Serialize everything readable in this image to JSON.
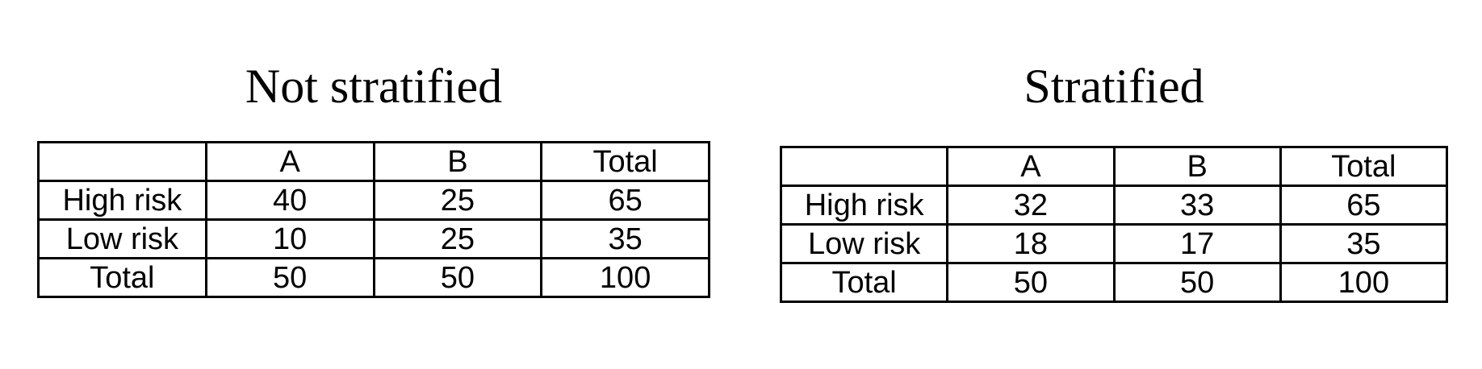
{
  "chart_data": [
    {
      "type": "table",
      "title": "Not stratified",
      "columns": [
        "",
        "A",
        "B",
        "Total"
      ],
      "rows": [
        {
          "label": "High risk",
          "values": [
            40,
            25,
            65
          ]
        },
        {
          "label": "Low risk",
          "values": [
            10,
            25,
            35
          ]
        },
        {
          "label": "Total",
          "values": [
            50,
            50,
            100
          ]
        }
      ]
    },
    {
      "type": "table",
      "title": "Stratified",
      "columns": [
        "",
        "A",
        "B",
        "Total"
      ],
      "rows": [
        {
          "label": "High risk",
          "values": [
            32,
            33,
            65
          ]
        },
        {
          "label": "Low risk",
          "values": [
            18,
            17,
            35
          ]
        },
        {
          "label": "Total",
          "values": [
            50,
            50,
            100
          ]
        }
      ]
    }
  ]
}
